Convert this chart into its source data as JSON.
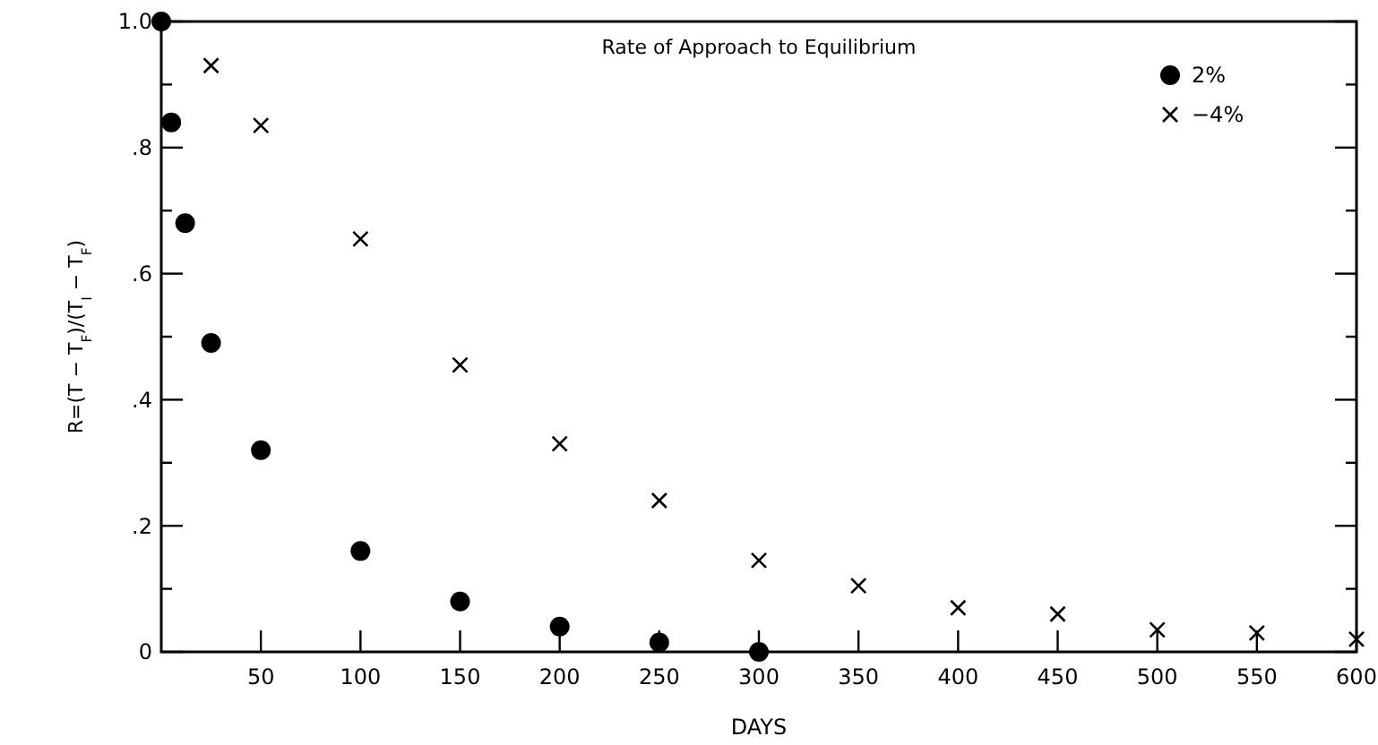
{
  "chart_data": {
    "type": "scatter",
    "title": "Rate of Approach to Equilibrium",
    "xlabel": "DAYS",
    "ylabel": "R=(T − T$_{F}$)/(T$_{I}$ − T$_{F}$)",
    "xlim": [
      0,
      600
    ],
    "xticks": [
      50,
      100,
      150,
      200,
      250,
      300,
      350,
      400,
      450,
      500,
      550,
      600
    ],
    "ylim": [
      0,
      1
    ],
    "yticks": [
      {
        "value": 0,
        "label": "0"
      },
      {
        "value": 0.1,
        "label": null
      },
      {
        "value": 0.2,
        "label": ".2"
      },
      {
        "value": 0.3,
        "label": null
      },
      {
        "value": 0.4,
        "label": ".4"
      },
      {
        "value": 0.5,
        "label": null
      },
      {
        "value": 0.6,
        "label": ".6"
      },
      {
        "value": 0.7,
        "label": null
      },
      {
        "value": 0.8,
        "label": ".8"
      },
      {
        "value": 0.9,
        "label": null
      },
      {
        "value": 1,
        "label": "1.0"
      }
    ],
    "grid": false,
    "legend": "top right",
    "series": [
      {
        "name": "2%",
        "color": "#000000",
        "marker": "circle",
        "x": [
          0,
          5,
          12,
          25,
          50,
          100,
          150,
          200,
          250,
          300
        ],
        "values": [
          1.0,
          0.84,
          0.68,
          0.49,
          0.32,
          0.16,
          0.08,
          0.04,
          0.015,
          0.0
        ]
      },
      {
        "name": "−4%",
        "color": "#000000",
        "marker": "cross",
        "x": [
          25,
          50,
          100,
          150,
          200,
          250,
          300,
          350,
          400,
          450,
          500,
          550,
          600
        ],
        "values": [
          0.93,
          0.835,
          0.655,
          0.455,
          0.33,
          0.24,
          0.145,
          0.105,
          0.07,
          0.06,
          0.035,
          0.03,
          0.02
        ]
      }
    ]
  }
}
